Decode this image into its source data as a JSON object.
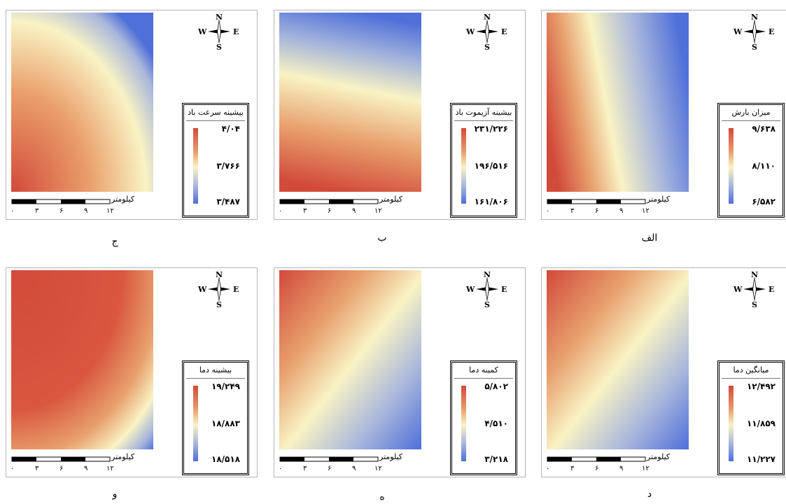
{
  "compass": {
    "n": "N",
    "s": "S",
    "w": "W",
    "e": "E"
  },
  "scale": {
    "unit": "کیلومتر",
    "ticks": [
      "۰",
      "۳",
      "۶",
      "۹",
      "۱۲"
    ]
  },
  "colors": {
    "high": "#d24a3a",
    "mid": "#f9f3c4",
    "low": "#4f6fd9"
  },
  "panels": [
    {
      "label": "ج",
      "legend_title": "بیشینه سرعت باد",
      "high": "۴/۰۴",
      "mid": "۳/۷۶۶",
      "low": "۳/۴۸۷"
    },
    {
      "label": "ب",
      "legend_title": "بیشینه آزیموت باد",
      "high": "۲۳۱/۲۲۶",
      "mid": "۱۹۶/۵۱۶",
      "low": "۱۶۱/۸۰۶"
    },
    {
      "label": "الف",
      "legend_title": "میزان بارش",
      "high": "۹/۶۳۸",
      "mid": "۸/۱۱۰",
      "low": "۶/۵۸۲"
    },
    {
      "label": "و",
      "legend_title": "بیشینه دما",
      "high": "۱۹/۲۴۹",
      "mid": "۱۸/۸۸۳",
      "low": "۱۸/۵۱۸"
    },
    {
      "label": "ه",
      "legend_title": "کمینه دما",
      "high": "۵/۸۰۲",
      "mid": "۴/۵۱۰",
      "low": "۳/۲۱۸"
    },
    {
      "label": "د",
      "legend_title": "میانگین دما",
      "high": "۱۲/۴۹۲",
      "mid": "۱۱/۸۵۹",
      "low": "۱۱/۲۲۷"
    }
  ]
}
